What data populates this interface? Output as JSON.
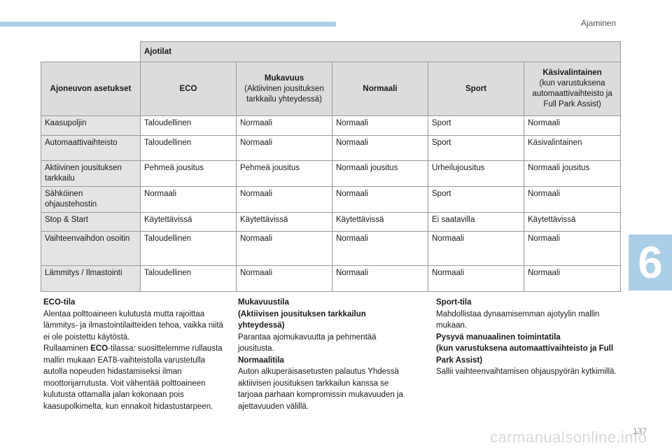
{
  "header": {
    "chapter_title": "Ajaminen"
  },
  "chapter_tab": "6",
  "table": {
    "group_header": "Ajotilat",
    "first_col_header": "Ajoneuvon asetukset",
    "mode_headers": [
      {
        "title": "ECO",
        "sub": ""
      },
      {
        "title": "Mukavuus",
        "sub": "(Aktiivinen jousituksen tarkkailu yhteydessä)"
      },
      {
        "title": "Normaali",
        "sub": ""
      },
      {
        "title": "Sport",
        "sub": ""
      },
      {
        "title": "Käsivalintainen",
        "sub": "(kun varustuksena automaattivaihteisto ja Full Park Assist)"
      }
    ],
    "rows": [
      {
        "label": "Kaasupoljin",
        "values": [
          "Taloudellinen",
          "Normaali",
          "Normaali",
          "Sport",
          "Normaali"
        ]
      },
      {
        "label": "Automaattivaihteisto",
        "values": [
          "Taloudellinen",
          "Normaali",
          "Normaali",
          "Sport",
          "Käsivalintainen"
        ]
      },
      {
        "label": "Aktiivinen jousituksen tarkkailu",
        "values": [
          "Pehmeä jousitus",
          "Pehmeä jousitus",
          "Normaali jousitus",
          "Urheilujousitus",
          "Normaali jousitus"
        ]
      },
      {
        "label": "Sähköinen ohjaustehostin",
        "values": [
          "Normaali",
          "Normaali",
          "Normaali",
          "Sport",
          "Normaali"
        ]
      },
      {
        "label": "Stop & Start",
        "values": [
          "Käytettävissä",
          "Käytettävissä",
          "Käytettävissä",
          "Ei saatavilla",
          "Käytettävissä"
        ]
      },
      {
        "label": "Vaihteenvaihdon osoitin",
        "values": [
          "Taloudellinen",
          "Normaali",
          "Normaali",
          "Normaali",
          "Normaali"
        ]
      },
      {
        "label": "Lämmitys / Ilmastointi",
        "values": [
          "Taloudellinen",
          "Normaali",
          "Normaali",
          "Normaali",
          "Normaali"
        ]
      }
    ]
  },
  "text": {
    "eco_title": "ECO-tila",
    "eco_body1": "Alentaa polttoaineen kulutusta mutta rajoittaa lämmitys- ja ilmastointilaitteiden tehoa, vaikka niitä ei ole poistettu käytöstä.",
    "eco_body2_pre": "Rullaaminen ",
    "eco_body2_bold": "ECO",
    "eco_body2_post": "-tilassa: suosittelemme rullausta mallin mukaan EAT8-vaihteistolla varustetulla autolla nopeuden hidastamiseksi ilman moottorijarrutusta. Voit vähentää polttoaineen kulutusta ottamalla jalan kokonaan pois kaasupolkimelta, kun ennakoit hidastustarpeen.",
    "comfort_title": "Mukavuustila",
    "comfort_sub": "(Aktiivisen jousituksen tarkkailun yhteydessä)",
    "comfort_body": "Parantaa ajomukavuutta ja pehmentää jousitusta.",
    "normal_title": "Normaalitila",
    "normal_body": "Auton alkuperäisasetusten palautus Yhdessä aktiivisen jousituksen tarkkailun kanssa se tarjoaa parhaan kompromissin mukavuuden ja ajettavuuden välillä.",
    "sport_title": "Sport-tila",
    "sport_body": "Mahdollistaa dynaamisemman ajotyylin mallin mukaan.",
    "manual_title": "Pysyvä manuaalinen toimintatila",
    "manual_sub": "(kun varustuksena automaattivaihteisto ja Full Park Assist)",
    "manual_body": "Sallii vaihteenvaihtamisen ohjauspyörän kytkimillä."
  },
  "footer": {
    "page_number": "137",
    "watermark": "carmanualsonline.info"
  }
}
